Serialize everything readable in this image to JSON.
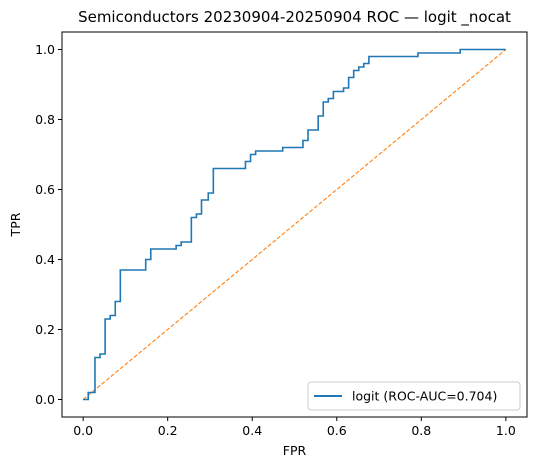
{
  "chart_data": {
    "type": "line",
    "title": "Semiconductors 20230904-20250904 ROC — logit _nocat",
    "xlabel": "FPR",
    "ylabel": "TPR",
    "xlim": [
      -0.05,
      1.05
    ],
    "ylim": [
      -0.05,
      1.05
    ],
    "xticks": [
      "0.0",
      "0.2",
      "0.4",
      "0.6",
      "0.8",
      "1.0"
    ],
    "yticks": [
      "0.0",
      "0.2",
      "0.4",
      "0.6",
      "0.8",
      "1.0"
    ],
    "grid": false,
    "legend_position": "lower-right",
    "series": [
      {
        "name": "logit (ROC-AUC=0.704)",
        "color": "#1f77b4",
        "style": "solid",
        "step": true,
        "x": [
          0.0,
          0.012,
          0.012,
          0.028,
          0.028,
          0.04,
          0.04,
          0.052,
          0.052,
          0.064,
          0.064,
          0.076,
          0.076,
          0.088,
          0.088,
          0.1,
          0.1,
          0.148,
          0.148,
          0.16,
          0.16,
          0.22,
          0.22,
          0.232,
          0.232,
          0.256,
          0.256,
          0.268,
          0.268,
          0.28,
          0.28,
          0.296,
          0.296,
          0.308,
          0.308,
          0.32,
          0.32,
          0.384,
          0.384,
          0.396,
          0.396,
          0.408,
          0.408,
          0.472,
          0.472,
          0.52,
          0.52,
          0.532,
          0.532,
          0.556,
          0.556,
          0.568,
          0.568,
          0.58,
          0.58,
          0.592,
          0.592,
          0.616,
          0.616,
          0.628,
          0.628,
          0.64,
          0.64,
          0.652,
          0.652,
          0.664,
          0.664,
          0.676,
          0.676,
          0.688,
          0.688,
          0.792,
          0.792,
          0.892,
          0.892,
          1.0
        ],
        "y": [
          0.0,
          0.0,
          0.02,
          0.02,
          0.12,
          0.12,
          0.13,
          0.13,
          0.23,
          0.23,
          0.24,
          0.24,
          0.28,
          0.28,
          0.37,
          0.37,
          0.37,
          0.37,
          0.4,
          0.4,
          0.43,
          0.43,
          0.44,
          0.44,
          0.45,
          0.45,
          0.52,
          0.52,
          0.53,
          0.53,
          0.57,
          0.57,
          0.59,
          0.59,
          0.66,
          0.66,
          0.66,
          0.66,
          0.68,
          0.68,
          0.7,
          0.7,
          0.71,
          0.71,
          0.72,
          0.72,
          0.74,
          0.74,
          0.77,
          0.77,
          0.81,
          0.81,
          0.85,
          0.85,
          0.86,
          0.86,
          0.88,
          0.88,
          0.89,
          0.89,
          0.92,
          0.92,
          0.94,
          0.94,
          0.95,
          0.95,
          0.96,
          0.96,
          0.98,
          0.98,
          0.98,
          0.98,
          0.99,
          0.99,
          1.0,
          1.0
        ]
      },
      {
        "name": "",
        "color": "#ff7f0e",
        "style": "dashed",
        "x": [
          0.0,
          1.0
        ],
        "y": [
          0.0,
          1.0
        ]
      }
    ]
  }
}
